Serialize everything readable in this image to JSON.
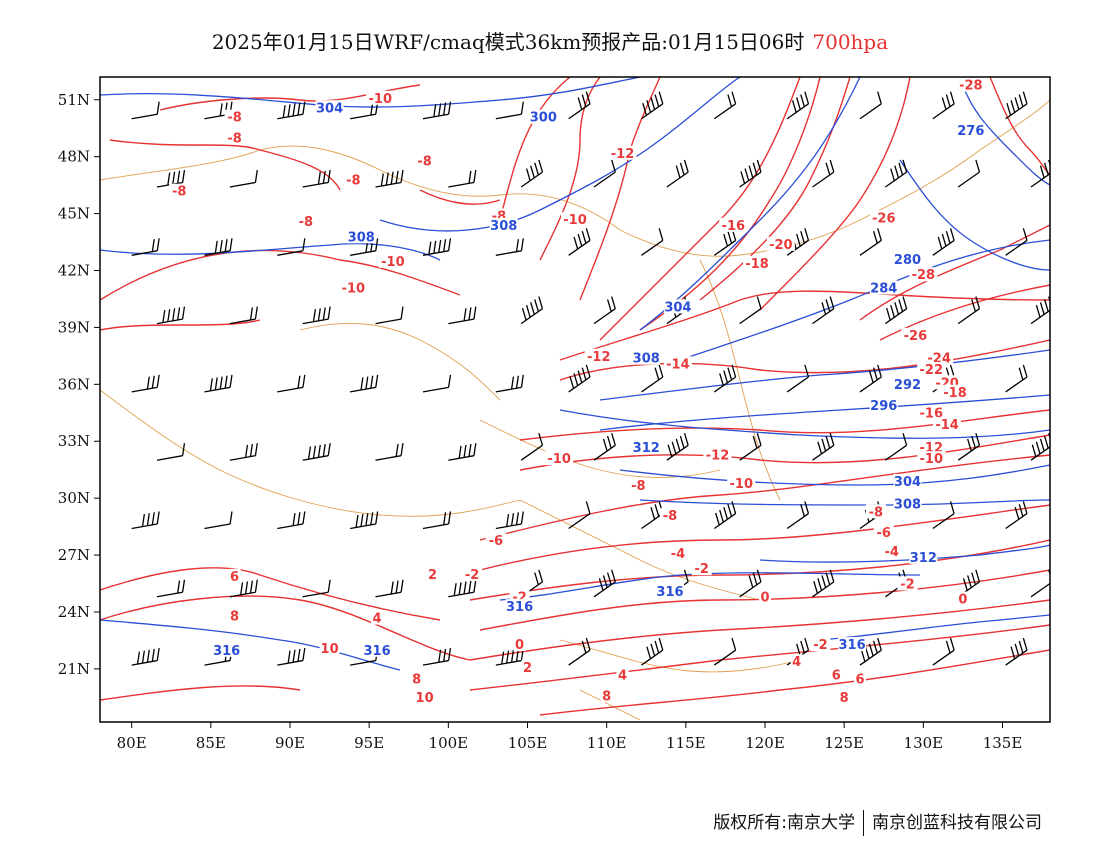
{
  "title": {
    "main": "2025年01月15日WRF/cmaq模式36km预报产品:01月15日06时",
    "level": "700hpa"
  },
  "footer": {
    "left": "版权所有:南京大学",
    "right": "南京创蓝科技有限公司"
  },
  "colors": {
    "temperature_contour": "#e63232",
    "geopotential_contour": "#2a4fd6",
    "boundary": "#e0a050",
    "wind_barb": "#000000"
  },
  "map": {
    "lon_ticks": [
      "80E",
      "85E",
      "90E",
      "95E",
      "100E",
      "105E",
      "110E",
      "115E",
      "120E",
      "125E",
      "130E",
      "135E"
    ],
    "lat_ticks": [
      "51N",
      "48N",
      "45N",
      "42N",
      "39N",
      "36N",
      "33N",
      "30N",
      "27N",
      "24N",
      "21N"
    ],
    "lon_range": [
      78,
      138
    ],
    "lat_range": [
      18.2,
      52.2
    ],
    "temperature_labels": [
      {
        "text": "-10",
        "lon": 95.7,
        "lat": 51.0
      },
      {
        "text": "-8",
        "lon": 86.5,
        "lat": 50.0
      },
      {
        "text": "-8",
        "lon": 86.5,
        "lat": 48.9
      },
      {
        "text": "-8",
        "lon": 98.5,
        "lat": 47.7
      },
      {
        "text": "-8",
        "lon": 94.0,
        "lat": 46.7
      },
      {
        "text": "-8",
        "lon": 83.0,
        "lat": 46.1
      },
      {
        "text": "-8",
        "lon": 91.0,
        "lat": 44.5
      },
      {
        "text": "-10",
        "lon": 96.5,
        "lat": 42.4
      },
      {
        "text": "-10",
        "lon": 94.0,
        "lat": 41.0
      },
      {
        "text": "-8",
        "lon": 103.2,
        "lat": 44.8
      },
      {
        "text": "-10",
        "lon": 108.0,
        "lat": 44.6
      },
      {
        "text": "-12",
        "lon": 111.0,
        "lat": 48.1
      },
      {
        "text": "-16",
        "lon": 118.0,
        "lat": 44.3
      },
      {
        "text": "-20",
        "lon": 121.0,
        "lat": 43.3
      },
      {
        "text": "-18",
        "lon": 119.5,
        "lat": 42.3
      },
      {
        "text": "-28",
        "lon": 133.0,
        "lat": 51.7
      },
      {
        "text": "-26",
        "lon": 127.5,
        "lat": 44.7
      },
      {
        "text": "-28",
        "lon": 130.0,
        "lat": 41.7
      },
      {
        "text": "-26",
        "lon": 129.5,
        "lat": 38.5
      },
      {
        "text": "-24",
        "lon": 131.0,
        "lat": 37.3
      },
      {
        "text": "-22",
        "lon": 130.5,
        "lat": 36.7
      },
      {
        "text": "-20",
        "lon": 131.5,
        "lat": 36.0
      },
      {
        "text": "-18",
        "lon": 132.0,
        "lat": 35.5
      },
      {
        "text": "-16",
        "lon": 130.5,
        "lat": 34.4
      },
      {
        "text": "-14",
        "lon": 131.5,
        "lat": 33.8
      },
      {
        "text": "-12",
        "lon": 130.5,
        "lat": 32.6
      },
      {
        "text": "-10",
        "lon": 130.5,
        "lat": 32.0
      },
      {
        "text": "-12",
        "lon": 109.5,
        "lat": 37.4
      },
      {
        "text": "-14",
        "lon": 114.5,
        "lat": 37.0
      },
      {
        "text": "-10",
        "lon": 107.0,
        "lat": 32.0
      },
      {
        "text": "-12",
        "lon": 117.0,
        "lat": 32.2
      },
      {
        "text": "-8",
        "lon": 112.0,
        "lat": 30.6
      },
      {
        "text": "-10",
        "lon": 118.5,
        "lat": 30.7
      },
      {
        "text": "-8",
        "lon": 114.0,
        "lat": 29.0
      },
      {
        "text": "-8",
        "lon": 127.0,
        "lat": 29.2
      },
      {
        "text": "-6",
        "lon": 103.0,
        "lat": 27.7
      },
      {
        "text": "-6",
        "lon": 127.5,
        "lat": 28.1
      },
      {
        "text": "-4",
        "lon": 114.5,
        "lat": 27.0
      },
      {
        "text": "-4",
        "lon": 128.0,
        "lat": 27.1
      },
      {
        "text": "-2",
        "lon": 116.0,
        "lat": 26.2
      },
      {
        "text": "-2",
        "lon": 129.0,
        "lat": 25.4
      },
      {
        "text": "-2",
        "lon": 101.5,
        "lat": 25.9
      },
      {
        "text": "-2",
        "lon": 104.5,
        "lat": 24.7
      },
      {
        "text": "0",
        "lon": 120.0,
        "lat": 24.7
      },
      {
        "text": "0",
        "lon": 132.5,
        "lat": 24.6
      },
      {
        "text": "0",
        "lon": 104.5,
        "lat": 22.2
      },
      {
        "text": "-2",
        "lon": 123.5,
        "lat": 22.2
      },
      {
        "text": "2",
        "lon": 99.0,
        "lat": 25.9
      },
      {
        "text": "2",
        "lon": 105.0,
        "lat": 21.0
      },
      {
        "text": "4",
        "lon": 95.5,
        "lat": 23.6
      },
      {
        "text": "4",
        "lon": 111.0,
        "lat": 20.6
      },
      {
        "text": "4",
        "lon": 122.0,
        "lat": 21.3
      },
      {
        "text": "6",
        "lon": 86.5,
        "lat": 25.8
      },
      {
        "text": "6",
        "lon": 124.5,
        "lat": 20.6
      },
      {
        "text": "6",
        "lon": 126.0,
        "lat": 20.4
      },
      {
        "text": "8",
        "lon": 86.5,
        "lat": 23.7
      },
      {
        "text": "8",
        "lon": 98.0,
        "lat": 20.4
      },
      {
        "text": "8",
        "lon": 110.0,
        "lat": 19.5
      },
      {
        "text": "8",
        "lon": 125.0,
        "lat": 19.4
      },
      {
        "text": "10",
        "lon": 92.5,
        "lat": 22.0
      },
      {
        "text": "10",
        "lon": 98.5,
        "lat": 19.4
      }
    ],
    "geopotential_labels": [
      {
        "text": "304",
        "lon": 92.5,
        "lat": 50.5
      },
      {
        "text": "300",
        "lon": 106.0,
        "lat": 50.0
      },
      {
        "text": "276",
        "lon": 133.0,
        "lat": 49.3
      },
      {
        "text": "308",
        "lon": 103.5,
        "lat": 44.3
      },
      {
        "text": "308",
        "lon": 94.5,
        "lat": 43.7
      },
      {
        "text": "280",
        "lon": 129.0,
        "lat": 42.5
      },
      {
        "text": "284",
        "lon": 127.5,
        "lat": 41.0
      },
      {
        "text": "304",
        "lon": 114.5,
        "lat": 40.0
      },
      {
        "text": "308",
        "lon": 112.5,
        "lat": 37.3
      },
      {
        "text": "292",
        "lon": 129.0,
        "lat": 35.9
      },
      {
        "text": "296",
        "lon": 127.5,
        "lat": 34.8
      },
      {
        "text": "312",
        "lon": 112.5,
        "lat": 32.6
      },
      {
        "text": "304",
        "lon": 129.0,
        "lat": 30.8
      },
      {
        "text": "308",
        "lon": 129.0,
        "lat": 29.6
      },
      {
        "text": "312",
        "lon": 130.0,
        "lat": 26.8
      },
      {
        "text": "316",
        "lon": 114.0,
        "lat": 25.0
      },
      {
        "text": "316",
        "lon": 104.5,
        "lat": 24.2
      },
      {
        "text": "316",
        "lon": 86.0,
        "lat": 21.9
      },
      {
        "text": "316",
        "lon": 95.5,
        "lat": 21.9
      },
      {
        "text": "316",
        "lon": 125.5,
        "lat": 22.2
      }
    ]
  }
}
